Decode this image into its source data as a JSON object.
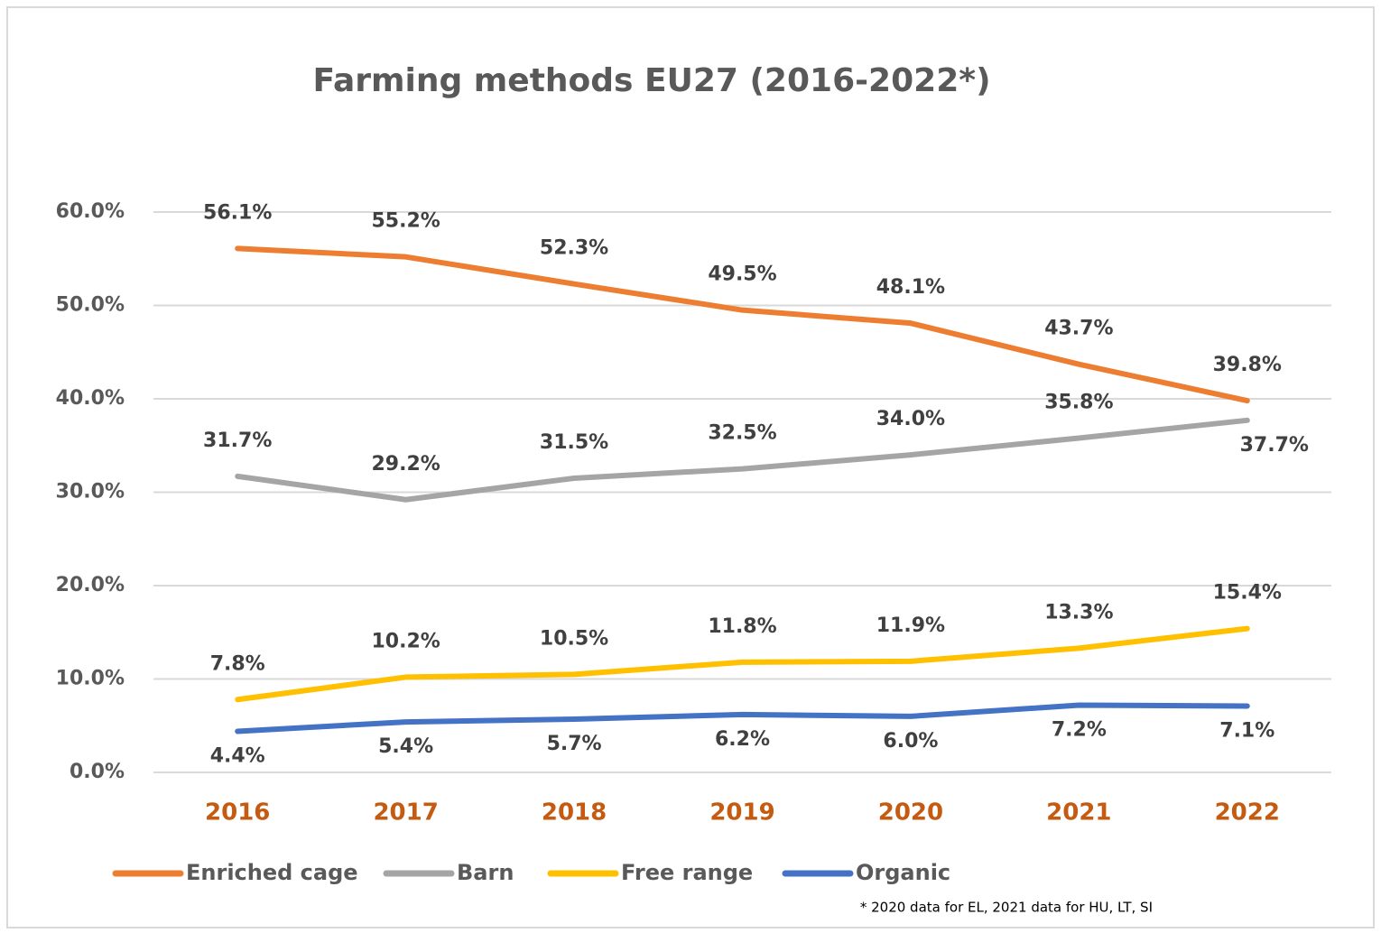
{
  "chart_data": {
    "type": "line",
    "title": "Farming methods EU27 (2016-2022*)",
    "categories": [
      "2016",
      "2017",
      "2018",
      "2019",
      "2020",
      "2021",
      "2022"
    ],
    "series": [
      {
        "name": "Enriched cage",
        "color": "#ED7D31",
        "values": [
          56.1,
          55.2,
          52.3,
          49.5,
          48.1,
          43.7,
          39.8
        ],
        "value_labels": [
          "56.1%",
          "55.2%",
          "52.3%",
          "49.5%",
          "48.1%",
          "43.7%",
          "39.8%"
        ]
      },
      {
        "name": "Barn",
        "color": "#A5A5A5",
        "values": [
          31.7,
          29.2,
          31.5,
          32.5,
          34.0,
          35.8,
          37.7
        ],
        "value_labels": [
          "31.7%",
          "29.2%",
          "31.5%",
          "32.5%",
          "34.0%",
          "35.8%",
          "37.7%"
        ]
      },
      {
        "name": "Free range",
        "color": "#FFC000",
        "values": [
          7.8,
          10.2,
          10.5,
          11.8,
          11.9,
          13.3,
          15.4
        ],
        "value_labels": [
          "7.8%",
          "10.2%",
          "10.5%",
          "11.8%",
          "11.9%",
          "13.3%",
          "15.4%"
        ]
      },
      {
        "name": "Organic",
        "color": "#4472C4",
        "values": [
          4.4,
          5.4,
          5.7,
          6.2,
          6.0,
          7.2,
          7.1
        ],
        "value_labels": [
          "4.4%",
          "5.4%",
          "5.7%",
          "6.2%",
          "6.0%",
          "7.2%",
          "7.1%"
        ]
      }
    ],
    "ylim": [
      0,
      60
    ],
    "yticks": [
      {
        "value": 0,
        "label": "0.0%"
      },
      {
        "value": 10,
        "label": "10.0%"
      },
      {
        "value": 20,
        "label": "20.0%"
      },
      {
        "value": 30,
        "label": "30.0%"
      },
      {
        "value": 40,
        "label": "40.0%"
      },
      {
        "value": 50,
        "label": "50.0%"
      },
      {
        "value": 60,
        "label": "60.0%"
      }
    ],
    "grid": true,
    "legend": "bottom",
    "annotation": "* 2020 data for EL, 2021 data for HU, LT, SI"
  }
}
